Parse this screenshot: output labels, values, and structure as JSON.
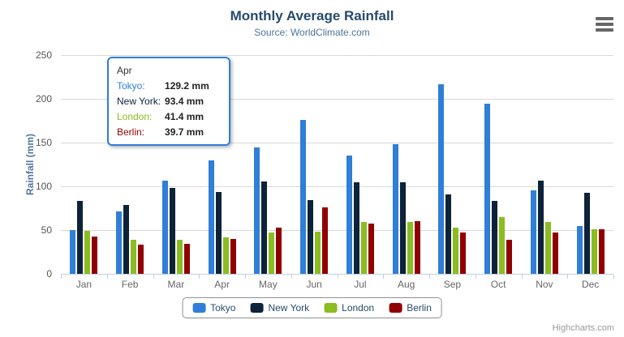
{
  "header": {
    "title": "Monthly Average Rainfall",
    "subtitle": "Source: WorldClimate.com"
  },
  "credits": {
    "label": "Highcharts.com"
  },
  "chart_data": {
    "type": "bar",
    "title": "Monthly Average Rainfall",
    "subtitle": "Source: WorldClimate.com",
    "xlabel": "",
    "ylabel": "Rainfall (mm)",
    "ylim": [
      0,
      250
    ],
    "ytick_interval": 50,
    "grid": true,
    "legend_position": "bottom-center",
    "unit": "mm",
    "categories": [
      "Jan",
      "Feb",
      "Mar",
      "Apr",
      "May",
      "Jun",
      "Jul",
      "Aug",
      "Sep",
      "Oct",
      "Nov",
      "Dec"
    ],
    "series": [
      {
        "name": "Tokyo",
        "color": "#2f7ed8",
        "values": [
          49.9,
          71.5,
          106.4,
          129.2,
          144.0,
          176.0,
          135.6,
          148.5,
          216.4,
          194.1,
          95.6,
          54.4
        ]
      },
      {
        "name": "New York",
        "color": "#0d233a",
        "values": [
          83.6,
          78.8,
          98.5,
          93.4,
          106.0,
          84.5,
          105.0,
          104.3,
          91.2,
          83.5,
          106.6,
          92.3
        ]
      },
      {
        "name": "London",
        "color": "#8bbc21",
        "values": [
          48.9,
          38.8,
          39.3,
          41.4,
          47.0,
          48.3,
          59.0,
          59.6,
          52.4,
          65.2,
          59.3,
          51.2
        ]
      },
      {
        "name": "Berlin",
        "color": "#910000",
        "values": [
          42.4,
          33.2,
          34.5,
          39.7,
          52.6,
          75.5,
          57.4,
          60.4,
          47.6,
          39.1,
          46.8,
          51.1
        ]
      }
    ]
  },
  "tooltip": {
    "header": "Apr",
    "border_color": "#2f7ed8",
    "rows": [
      {
        "name": "Tokyo:",
        "value": "129.2 mm",
        "color": "#2f7ed8"
      },
      {
        "name": "New York:",
        "value": "93.4 mm",
        "color": "#0d233a"
      },
      {
        "name": "London:",
        "value": "41.4 mm",
        "color": "#8bbc21"
      },
      {
        "name": "Berlin:",
        "value": "39.7 mm",
        "color": "#910000"
      }
    ]
  }
}
